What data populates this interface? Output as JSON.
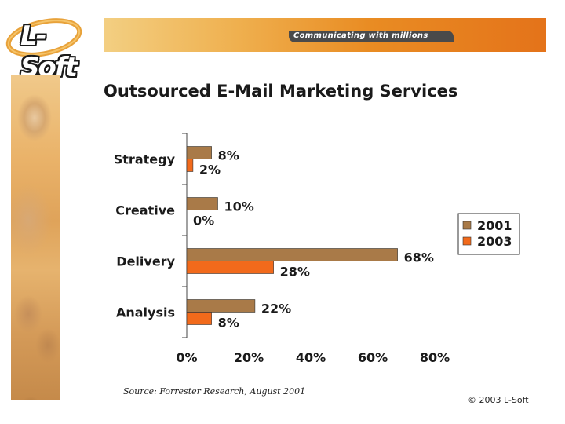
{
  "logo": {
    "text": "L-Soft"
  },
  "banner": {
    "tagline": "Communicating with millions"
  },
  "slide": {
    "title": "Outsourced E-Mail Marketing Services"
  },
  "chart_data": {
    "type": "bar",
    "orientation": "horizontal",
    "title": "Outsourced E-Mail Marketing Services",
    "categories": [
      "Strategy",
      "Creative",
      "Delivery",
      "Analysis"
    ],
    "series": [
      {
        "name": "2001",
        "values": [
          8,
          10,
          68,
          22
        ],
        "color": "#a97a48"
      },
      {
        "name": "2003",
        "values": [
          2,
          0,
          28,
          8
        ],
        "color": "#f26a1b"
      }
    ],
    "value_suffix": "%",
    "xlim": [
      0,
      80
    ],
    "xticks": [
      "0%",
      "20%",
      "40%",
      "60%",
      "80%"
    ],
    "legend_placement": "right"
  },
  "footer": {
    "source": "Source: Forrester Research, August 2001",
    "copyright": "© 2003 L-Soft"
  }
}
